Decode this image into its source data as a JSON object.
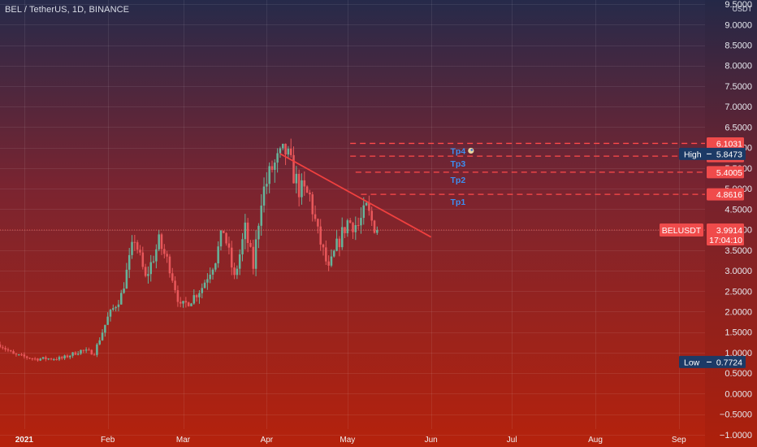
{
  "header": {
    "symbol_title": "BEL / TetherUS, 1D, BINANCE"
  },
  "colors": {
    "background_top": "#262a4a",
    "background_bottom": "#b5220c",
    "candle_up": "#66b39a",
    "candle_down": "#e8575a",
    "trendline": "#f0403f",
    "target_line": "#ff4a4a",
    "price_tag": "#f04b4b",
    "high_low_tag": "#1c3a66",
    "tp_text": "#3d8ef0"
  },
  "chart_data": {
    "type": "candlestick",
    "title": "BEL / TetherUS, 1D, BINANCE",
    "unit": "USDT",
    "x_range": [
      "2020-12-23",
      "2021-09-30"
    ],
    "ylim": [
      -1.3,
      9.6
    ],
    "y_ticks": [
      "9.5000",
      "9.0000",
      "8.5000",
      "8.0000",
      "7.5000",
      "7.0000",
      "6.5000",
      "6.0000",
      "5.5000",
      "5.0000",
      "4.5000",
      "4.0000",
      "3.5000",
      "3.0000",
      "2.5000",
      "2.0000",
      "1.5000",
      "1.0000",
      "0.5000",
      "0.0000",
      "−0.5000",
      "−1.0000"
    ],
    "x_ticks": [
      {
        "date": "2021-01-01",
        "label": "2021"
      },
      {
        "date": "2021-02-01",
        "label": "Feb"
      },
      {
        "date": "2021-03-01",
        "label": "Mar"
      },
      {
        "date": "2021-04-01",
        "label": "Apr"
      },
      {
        "date": "2021-05-01",
        "label": "May"
      },
      {
        "date": "2021-06-01",
        "label": "Jun"
      },
      {
        "date": "2021-07-01",
        "label": "Jul"
      },
      {
        "date": "2021-08-01",
        "label": "Aug"
      },
      {
        "date": "2021-09-01",
        "label": "Sep"
      }
    ],
    "close_path": [
      [
        "2020-12-23",
        1.2
      ],
      [
        "2020-12-28",
        0.95
      ],
      [
        "2021-01-05",
        0.85
      ],
      [
        "2021-01-15",
        0.86
      ],
      [
        "2021-01-22",
        1.05
      ],
      [
        "2021-01-27",
        1.0
      ],
      [
        "2021-02-01",
        1.85
      ],
      [
        "2021-02-06",
        2.4
      ],
      [
        "2021-02-11",
        3.8
      ],
      [
        "2021-02-15",
        2.8
      ],
      [
        "2021-02-20",
        3.7
      ],
      [
        "2021-02-24",
        3.1
      ],
      [
        "2021-02-28",
        2.1
      ],
      [
        "2021-03-04",
        2.3
      ],
      [
        "2021-03-08",
        2.6
      ],
      [
        "2021-03-13",
        3.3
      ],
      [
        "2021-03-16",
        4.0
      ],
      [
        "2021-03-20",
        2.8
      ],
      [
        "2021-03-24",
        4.0
      ],
      [
        "2021-03-27",
        3.1
      ],
      [
        "2021-03-30",
        4.8
      ],
      [
        "2021-04-03",
        5.5
      ],
      [
        "2021-04-08",
        5.9
      ],
      [
        "2021-04-13",
        5.0
      ],
      [
        "2021-04-17",
        4.8
      ],
      [
        "2021-04-20",
        3.9
      ],
      [
        "2021-04-24",
        3.0
      ],
      [
        "2021-04-27",
        3.6
      ],
      [
        "2021-05-01",
        4.2
      ],
      [
        "2021-05-05",
        4.1
      ],
      [
        "2021-05-08",
        4.5
      ],
      [
        "2021-05-10",
        4.2
      ],
      [
        "2021-05-12",
        3.99
      ]
    ],
    "series": [
      {
        "name": "BELUSDT",
        "last": 3.9914,
        "countdown": "17:04:10"
      }
    ],
    "high": 5.8473,
    "low": 0.7724,
    "trendline": {
      "from": [
        "2021-04-06",
        5.85
      ],
      "to": [
        "2021-06-01",
        3.82
      ]
    },
    "targets": [
      {
        "name": "Tp1",
        "value": 4.8616,
        "label": "4.8616",
        "start": "2021-05-06"
      },
      {
        "name": "Tp2",
        "value": 5.4005,
        "label": "5.4005",
        "start": "2021-05-04"
      },
      {
        "name": "Tp3",
        "value": 5.7927,
        "label": "5.7927",
        "start": "2021-05-02"
      },
      {
        "name": "Tp4",
        "value": 6.1031,
        "label": "6.1031",
        "start": "2021-05-02"
      }
    ],
    "tp_label_date": "2021-06-11",
    "price_labels": [
      {
        "name": "high",
        "title": "High",
        "value": 5.8473,
        "text": "5.8473"
      },
      {
        "name": "last",
        "title": "BELUSDT",
        "value": 3.9914,
        "text": "3.9914",
        "countdown": "17:04:10"
      },
      {
        "name": "low",
        "title": "Low",
        "value": 0.7724,
        "text": "0.7724"
      }
    ]
  }
}
